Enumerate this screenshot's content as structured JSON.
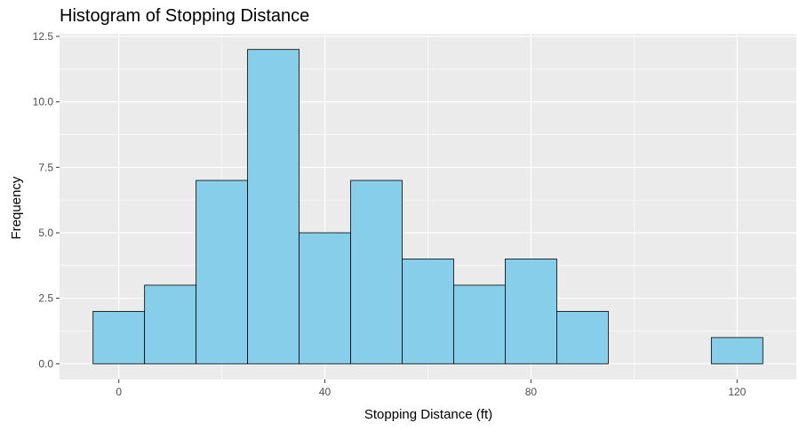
{
  "chart_data": {
    "type": "bar",
    "title": "Histogram of Stopping Distance",
    "xlabel": "Stopping Distance (ft)",
    "ylabel": "Frequency",
    "bins": [
      {
        "start": -5,
        "end": 5,
        "count": 2
      },
      {
        "start": 5,
        "end": 15,
        "count": 3
      },
      {
        "start": 15,
        "end": 25,
        "count": 7
      },
      {
        "start": 25,
        "end": 35,
        "count": 12
      },
      {
        "start": 35,
        "end": 45,
        "count": 5
      },
      {
        "start": 45,
        "end": 55,
        "count": 7
      },
      {
        "start": 55,
        "end": 65,
        "count": 4
      },
      {
        "start": 65,
        "end": 75,
        "count": 3
      },
      {
        "start": 75,
        "end": 85,
        "count": 4
      },
      {
        "start": 85,
        "end": 95,
        "count": 2
      },
      {
        "start": 95,
        "end": 105,
        "count": 0
      },
      {
        "start": 105,
        "end": 115,
        "count": 0
      },
      {
        "start": 115,
        "end": 125,
        "count": 1
      }
    ],
    "xlim": [
      -11.5,
      131.5
    ],
    "ylim": [
      -0.6,
      12.6
    ],
    "xticks": [
      0,
      40,
      80,
      120
    ],
    "xtick_labels": [
      "0",
      "40",
      "80",
      "120"
    ],
    "yticks": [
      0,
      2.5,
      5,
      7.5,
      10,
      12.5
    ],
    "ytick_labels": [
      "0.0",
      "2.5",
      "5.0",
      "7.5",
      "10.0",
      "12.5"
    ],
    "grid": true,
    "colors": {
      "bar_fill": "#87ceeb",
      "bar_stroke": "#000000",
      "panel_bg": "#ebebeb",
      "grid": "#ffffff"
    }
  }
}
